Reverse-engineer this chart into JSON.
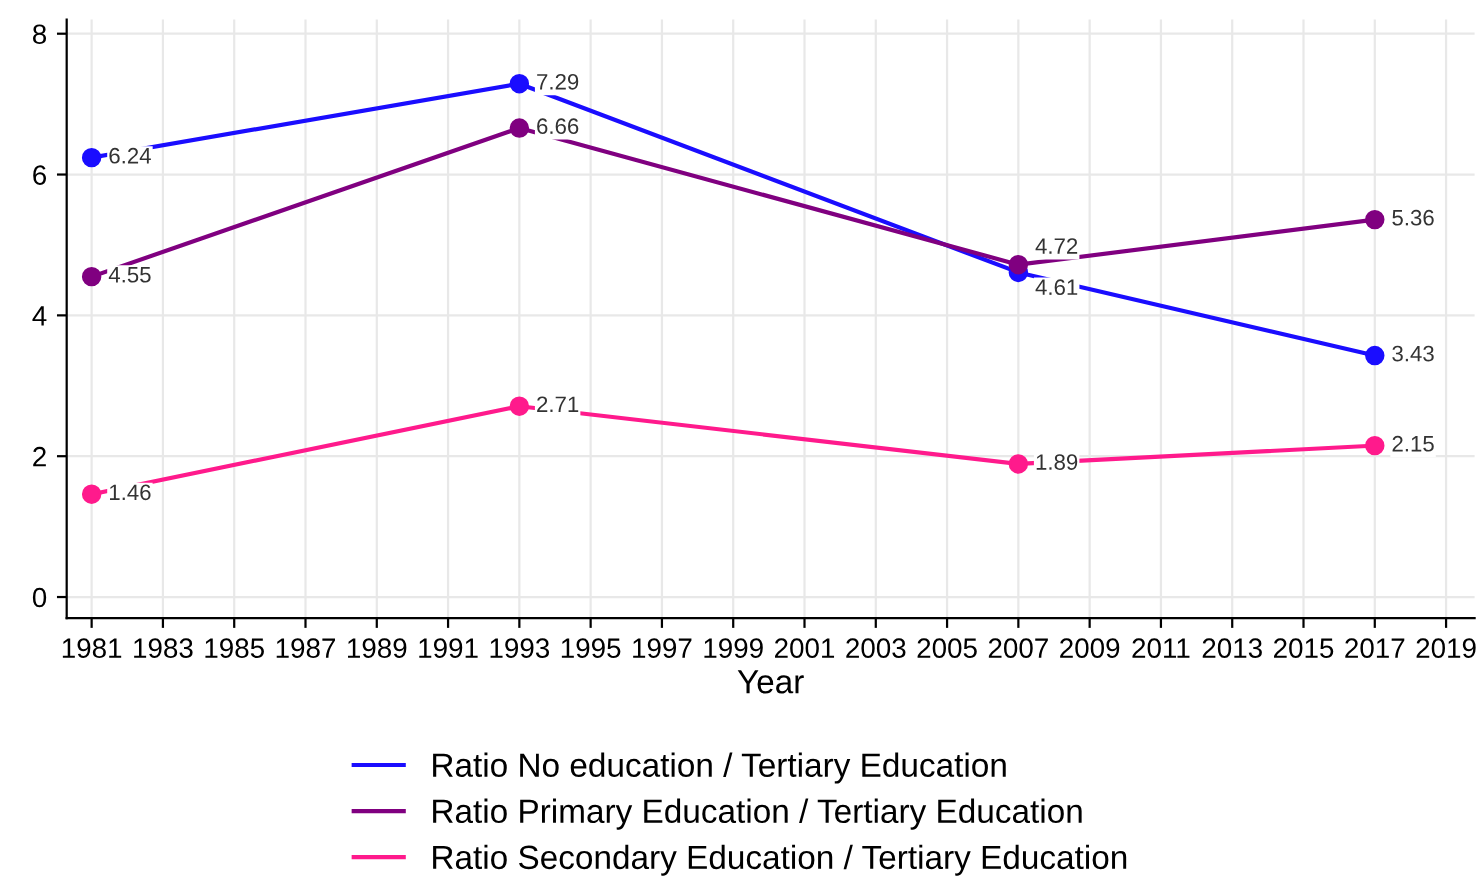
{
  "chart_data": {
    "type": "line",
    "xlabel": "Year",
    "x": [
      1981,
      1993,
      2007,
      2017
    ],
    "series": [
      {
        "name": "Ratio No education / Tertiary Education",
        "color": "#1a0dff",
        "values": [
          6.24,
          7.29,
          4.61,
          3.43
        ]
      },
      {
        "name": "Ratio Primary Education / Tertiary Education",
        "color": "#800080",
        "values": [
          4.55,
          6.66,
          4.72,
          5.36
        ]
      },
      {
        "name": "Ratio Secondary Education / Tertiary Education",
        "color": "#ff1a8c",
        "values": [
          1.46,
          2.71,
          1.89,
          2.15
        ]
      }
    ],
    "xlim": [
      1980.3,
      2019.8
    ],
    "xticks": [
      1981,
      1983,
      1985,
      1987,
      1989,
      1991,
      1993,
      1995,
      1997,
      1999,
      2001,
      2003,
      2005,
      2007,
      2009,
      2011,
      2013,
      2015,
      2017,
      2019
    ],
    "ylim": [
      -0.3,
      8.2
    ],
    "yticks": [
      0,
      2,
      4,
      6,
      8
    ],
    "grid": true,
    "legend": "bottom",
    "marker": "circle",
    "line_style": "solid",
    "data_labels": true
  }
}
